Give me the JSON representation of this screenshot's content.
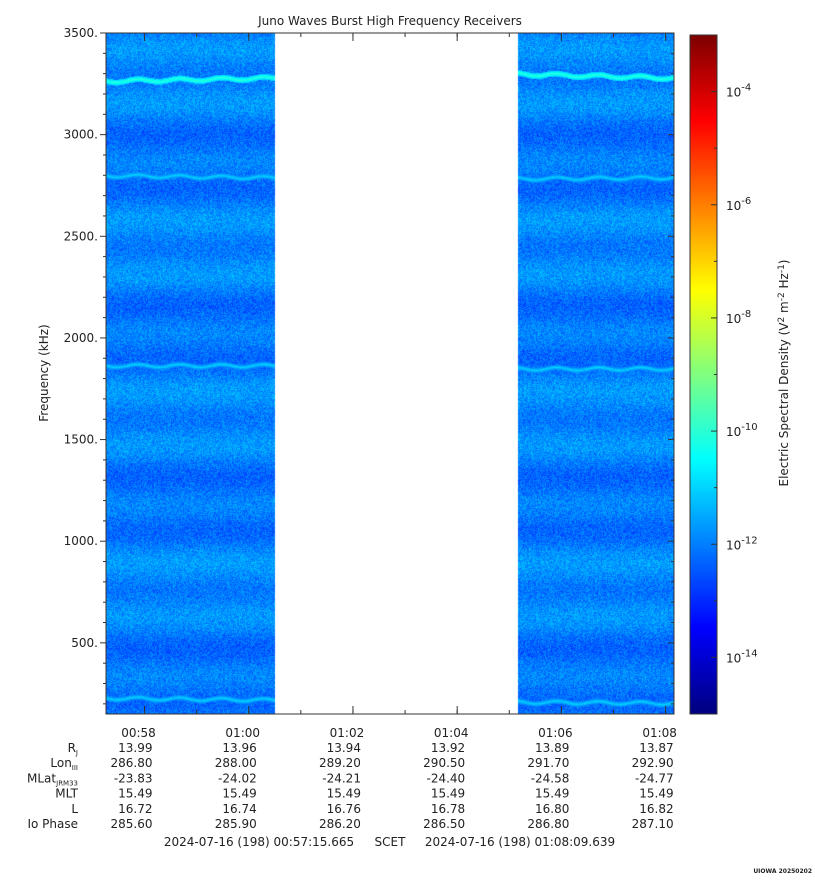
{
  "chart_data": {
    "type": "heatmap",
    "title": "Juno Waves Burst High Frequency Receivers",
    "ylabel": "Frequency (kHz)",
    "ylim": [
      150,
      3500
    ],
    "y_ticks": [
      500,
      1000,
      1500,
      2000,
      2500,
      3000,
      3500
    ],
    "y_tick_labels": [
      "500.",
      "1000.",
      "1500.",
      "2000.",
      "2500.",
      "3000.",
      "3500."
    ],
    "x_time_range": [
      "00:57:15.665",
      "01:08:09.639"
    ],
    "x_tick_labels": [
      "00:58",
      "01:00",
      "01:02",
      "01:04",
      "01:06",
      "01:08"
    ],
    "data_blocks": [
      {
        "start": "00:57:15",
        "end": "01:00:30"
      },
      {
        "start": "01:05:10",
        "end": "01:08:09"
      }
    ],
    "data_gap": {
      "start": "01:00:30",
      "end": "01:05:10"
    },
    "background_level_log10": -12,
    "emission_lines_khz": [
      {
        "block": 1,
        "freq_start": 3265,
        "freq_end": 3280,
        "log10_level": -10
      },
      {
        "block": 1,
        "freq_start": 2800,
        "freq_end": 2790,
        "log10_level": -11
      },
      {
        "block": 1,
        "freq_start": 1865,
        "freq_end": 1865,
        "log10_level": -11
      },
      {
        "block": 1,
        "freq_start": 230,
        "freq_end": 220,
        "log10_level": -11
      },
      {
        "block": 2,
        "freq_start": 3300,
        "freq_end": 3280,
        "log10_level": -10
      },
      {
        "block": 2,
        "freq_start": 2785,
        "freq_end": 2790,
        "log10_level": -11
      },
      {
        "block": 2,
        "freq_start": 1850,
        "freq_end": 1850,
        "log10_level": -11
      },
      {
        "block": 2,
        "freq_start": 210,
        "freq_end": 205,
        "log10_level": -11
      }
    ],
    "colorbar": {
      "label_prefix": "Electric Spectral Density (V",
      "label_exp1": "2",
      "label_mid": " m",
      "label_exp2": "-2",
      "label_mid2": " Hz",
      "label_exp3": "-1",
      "label_suffix": ")",
      "range_log10": [
        -15,
        -3
      ],
      "tick_base": "10",
      "tick_exponents": [
        "-4",
        "-6",
        "-8",
        "-10",
        "-12",
        "-14"
      ],
      "scale": "log"
    },
    "ephemeris": {
      "rows": [
        {
          "label": "R",
          "sub": "J",
          "values": [
            "13.99",
            "13.96",
            "13.94",
            "13.92",
            "13.89",
            "13.87"
          ]
        },
        {
          "label": "Lon",
          "sub": "III",
          "values": [
            "286.80",
            "288.00",
            "289.20",
            "290.50",
            "291.70",
            "292.90"
          ]
        },
        {
          "label": "MLat",
          "sub": "JRM33",
          "values": [
            "-23.83",
            "-24.02",
            "-24.21",
            "-24.40",
            "-24.58",
            "-24.77"
          ]
        },
        {
          "label": "MLT",
          "sub": "",
          "values": [
            "15.49",
            "15.49",
            "15.49",
            "15.49",
            "15.49",
            "15.49"
          ]
        },
        {
          "label": "L",
          "sub": "",
          "values": [
            "16.72",
            "16.74",
            "16.76",
            "16.78",
            "16.80",
            "16.82"
          ]
        },
        {
          "label": "Io Phase",
          "sub": "",
          "values": [
            "285.60",
            "285.90",
            "286.20",
            "286.50",
            "286.80",
            "287.10"
          ]
        }
      ]
    },
    "footer": {
      "start": "2024-07-16 (198) 00:57:15.665",
      "scet": "SCET",
      "end": "2024-07-16 (198) 01:08:09.639"
    },
    "stamp": "UIOWA 20250202"
  }
}
